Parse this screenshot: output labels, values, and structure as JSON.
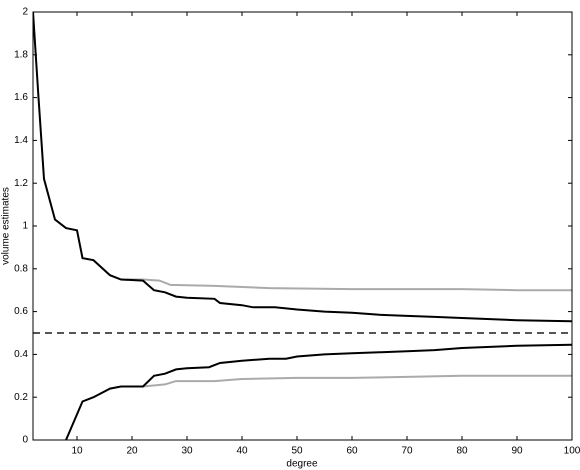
{
  "chart_data": {
    "type": "line",
    "x_label": "degree",
    "y_label": "volume estimates",
    "xlim": [
      2,
      100
    ],
    "ylim": [
      0,
      2
    ],
    "xticks": [
      10,
      20,
      30,
      40,
      50,
      60,
      70,
      80,
      90,
      100
    ],
    "yticks": [
      0,
      0.2,
      0.4,
      0.6,
      0.8,
      1,
      1.2,
      1.4,
      1.6,
      1.8,
      2
    ],
    "grid": false,
    "reference_line": {
      "value": 0.5,
      "color": "#555555",
      "style": "dashed"
    },
    "series": [
      {
        "color": "#aaaaaa",
        "x": [
          18,
          22,
          25,
          27,
          35,
          45,
          60,
          80,
          90,
          100
        ],
        "values": [
          0.75,
          0.75,
          0.745,
          0.725,
          0.72,
          0.71,
          0.705,
          0.705,
          0.7,
          0.7
        ]
      },
      {
        "color": "#aaaaaa",
        "x": [
          18,
          22,
          26,
          28,
          35,
          40,
          50,
          60,
          70,
          80,
          90,
          100
        ],
        "values": [
          0.25,
          0.25,
          0.26,
          0.275,
          0.275,
          0.285,
          0.29,
          0.29,
          0.295,
          0.3,
          0.3,
          0.3
        ]
      },
      {
        "color": "#000000",
        "x": [
          2,
          3,
          4,
          6,
          8,
          10,
          11,
          13,
          16,
          18,
          22,
          24,
          26,
          28,
          30,
          35,
          36,
          40,
          42,
          46,
          50,
          55,
          60,
          65,
          70,
          75,
          80,
          90,
          100
        ],
        "values": [
          2.0,
          1.6,
          1.22,
          1.03,
          0.99,
          0.98,
          0.85,
          0.84,
          0.77,
          0.75,
          0.745,
          0.7,
          0.69,
          0.67,
          0.665,
          0.66,
          0.64,
          0.63,
          0.62,
          0.62,
          0.61,
          0.6,
          0.595,
          0.585,
          0.58,
          0.575,
          0.57,
          0.56,
          0.555
        ]
      },
      {
        "color": "#000000",
        "x": [
          8,
          11,
          13,
          16,
          18,
          22,
          24,
          26,
          28,
          30,
          34,
          36,
          40,
          45,
          48,
          50,
          55,
          60,
          65,
          70,
          75,
          80,
          90,
          100
        ],
        "values": [
          0,
          0.18,
          0.2,
          0.24,
          0.25,
          0.25,
          0.3,
          0.31,
          0.33,
          0.335,
          0.34,
          0.36,
          0.37,
          0.38,
          0.38,
          0.39,
          0.4,
          0.405,
          0.41,
          0.415,
          0.42,
          0.43,
          0.44,
          0.445
        ]
      }
    ]
  }
}
